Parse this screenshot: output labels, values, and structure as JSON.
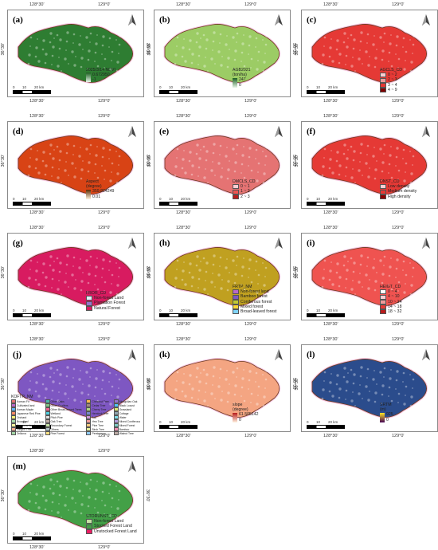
{
  "coords": {
    "lon_left": "128°30'",
    "lon_right": "129°0'",
    "lat": "36°30'"
  },
  "scale": {
    "n0": "0",
    "n1": "10",
    "n2": "20 km"
  },
  "panels": [
    {
      "id": "a",
      "label": "(a)",
      "fill": "#2e7d32",
      "legend": {
        "title": "2025/3/14 NDVI",
        "items": [
          {
            "t": "0.672950",
            "c": "#1b5e20"
          },
          {
            "t": "-1",
            "c": "#e8f5e9"
          }
        ],
        "type": "gradient"
      }
    },
    {
      "id": "b",
      "label": "(b)",
      "fill": "#9ccc65",
      "legend": {
        "title": "AGB2021",
        "items": [
          {
            "t": "(ton/ha)",
            "c": ""
          },
          {
            "t": "247",
            "c": "#1b5e20"
          },
          {
            "t": "0",
            "c": "#e8f5e9"
          }
        ],
        "type": "gradient"
      }
    },
    {
      "id": "c",
      "label": "(c)",
      "fill": "#e53935",
      "legend": {
        "title": "AGCLS_CD",
        "items": [
          {
            "t": "0 ~ 2",
            "c": "#ffcdd2"
          },
          {
            "t": "2 ~ 3",
            "c": "#ef9a9a"
          },
          {
            "t": "3 ~ 4",
            "c": "#e53935"
          },
          {
            "t": "4 ~ 9",
            "c": "#7f0000"
          }
        ],
        "type": "classes"
      }
    },
    {
      "id": "d",
      "label": "(d)",
      "fill": "#d84315",
      "legend": {
        "title": "Aspect",
        "items": [
          {
            "t": "(degree)",
            "c": ""
          },
          {
            "t": "359.824249",
            "c": "#5d2a00"
          },
          {
            "t": "0.01",
            "c": "#fff3e0"
          }
        ],
        "type": "gradient"
      }
    },
    {
      "id": "e",
      "label": "(e)",
      "fill": "#e57373",
      "legend": {
        "title": "DMCLS_CD",
        "items": [
          {
            "t": "0 ~ 1",
            "c": "#ffcdd2"
          },
          {
            "t": "1 ~ 2",
            "c": "#ef5350"
          },
          {
            "t": "2 ~ 3",
            "c": "#b71c1c"
          }
        ],
        "type": "classes"
      }
    },
    {
      "id": "f",
      "label": "(f)",
      "fill": "#e53935",
      "legend": {
        "title": "DNST_CD",
        "items": [
          {
            "t": "Low density",
            "c": "#ffcdd2"
          },
          {
            "t": "Medium density",
            "c": "#e53935"
          },
          {
            "t": "High density",
            "c": "#8b0000"
          }
        ],
        "type": "classes"
      }
    },
    {
      "id": "g",
      "label": "(g)",
      "fill": "#d81b60",
      "legend": {
        "title": "FROR_CD",
        "items": [
          {
            "t": "Non-forest Land",
            "c": "#e3f2fd"
          },
          {
            "t": "Plantation Forest",
            "c": "#9575cd"
          },
          {
            "t": "Natural Forest",
            "c": "#d81b60"
          }
        ],
        "type": "classes"
      }
    },
    {
      "id": "h",
      "label": "(h)",
      "fill": "#c0a020",
      "legend": {
        "title": "FRTP_NM",
        "items": [
          {
            "t": "Non-forest land",
            "c": "#ba68c8"
          },
          {
            "t": "Bamboo forest",
            "c": "#7e57c2"
          },
          {
            "t": "Coniferous forest",
            "c": "#c0ca33"
          },
          {
            "t": "Mixed forest",
            "c": "#fdd835"
          },
          {
            "t": "Broad-leaved forest",
            "c": "#81d4fa"
          }
        ],
        "type": "classes"
      }
    },
    {
      "id": "i",
      "label": "(i)",
      "fill": "#ef5350",
      "legend": {
        "title": "HEIGT_CD",
        "items": [
          {
            "t": "0 ~ 4",
            "c": "#fff"
          },
          {
            "t": "4 ~ 10",
            "c": "#ffcdd2"
          },
          {
            "t": "10 ~ 14",
            "c": "#ef9a9a"
          },
          {
            "t": "14 ~ 18",
            "c": "#e53935"
          },
          {
            "t": "18 ~ 32",
            "c": "#b71c1c"
          }
        ],
        "type": "classes"
      }
    },
    {
      "id": "j",
      "label": "(j)",
      "fill": "#7e57c2",
      "legend": {
        "title": "KOFTR_NM",
        "type": "grid",
        "items": [
          {
            "t": "Korean Fir",
            "c": "#e57373"
          },
          {
            "t": "Other Oaks",
            "c": "#4db6ac"
          },
          {
            "t": "Chestnut Tree",
            "c": "#ffb74d"
          },
          {
            "t": "Mongolian Oak",
            "c": "#9575cd"
          },
          {
            "t": "Cultivated land",
            "c": "#ba68c8"
          },
          {
            "t": "Other Conifers",
            "c": "#81c784"
          },
          {
            "t": "Cedar Tree",
            "c": "#a1887f"
          },
          {
            "t": "Black Locust",
            "c": "#4fc3f7"
          },
          {
            "t": "Korean Maple",
            "c": "#64b5f6"
          },
          {
            "t": "Other Broad-leaved Trees",
            "c": "#f06292"
          },
          {
            "t": "Cherry Tree",
            "c": "#aed581"
          },
          {
            "t": "Grassland",
            "c": "#dce775"
          },
          {
            "t": "Japanese Red Pine",
            "c": "#ff8a65"
          },
          {
            "t": "Wetland",
            "c": "#4dd0e1"
          },
          {
            "t": "Hemlock Tree",
            "c": "#7986cb"
          },
          {
            "t": "Cottage",
            "c": "#90a4ae"
          },
          {
            "t": "Orchard",
            "c": "#fff176"
          },
          {
            "t": "Pitch Pine",
            "c": "#e0e0e0"
          },
          {
            "t": "Ash",
            "c": "#ce93d8"
          },
          {
            "t": "Water",
            "c": "#80deea"
          },
          {
            "t": "Broadleaf",
            "c": "#a5d6a7"
          },
          {
            "t": "Oak Tree",
            "c": "#bcaaa4"
          },
          {
            "t": "Yew Tree",
            "c": "#ef9a9a"
          },
          {
            "t": "Mixed Coniferous",
            "c": "#b39ddb"
          },
          {
            "t": "Japanese Larch",
            "c": "#fff59d"
          },
          {
            "t": "Secondary Forest",
            "c": "#c5e1a5"
          },
          {
            "t": "Pine Tree",
            "c": "#ffcc80"
          },
          {
            "t": "Mixed Forest",
            "c": "#80cbc4"
          },
          {
            "t": "Gingko Tree",
            "c": "#ffab91"
          },
          {
            "t": "Others",
            "c": "#b0bec5"
          },
          {
            "t": "Birch Tree",
            "c": "#e6ee9c"
          },
          {
            "t": "Bamboo",
            "c": "#f48fb1"
          },
          {
            "t": "Zelkova",
            "c": "#a5d6a7"
          },
          {
            "t": "Pine Forest",
            "c": "#ffe082"
          },
          {
            "t": "Persimmon",
            "c": "#90caf9"
          },
          {
            "t": "Walnut Tree",
            "c": "#bcaaa4"
          }
        ]
      }
    },
    {
      "id": "k",
      "label": "(k)",
      "fill": "#f4a582",
      "legend": {
        "title": "slope",
        "items": [
          {
            "t": "(degree)",
            "c": ""
          },
          {
            "t": "61.505142",
            "c": "#b71c1c"
          },
          {
            "t": "0",
            "c": "#fff3e0"
          }
        ],
        "type": "gradient"
      }
    },
    {
      "id": "l",
      "label": "(l)",
      "fill": "#2b4c8c",
      "legend": {
        "title": "SRTM",
        "items": [
          {
            "t": "(m)",
            "c": ""
          },
          {
            "t": "925",
            "c": "#fde725"
          },
          {
            "t": "0",
            "c": "#440154"
          }
        ],
        "type": "gradient"
      }
    },
    {
      "id": "m",
      "label": "(m)",
      "fill": "#43a047",
      "legend": {
        "title": "STORUNST_CD",
        "items": [
          {
            "t": "Non-forest Land",
            "c": "#c5e1a5"
          },
          {
            "t": "Stocked Forest Land",
            "c": "#43a047"
          },
          {
            "t": "Unstocked Forest Land",
            "c": "#e91e63"
          }
        ],
        "type": "classes"
      }
    }
  ]
}
